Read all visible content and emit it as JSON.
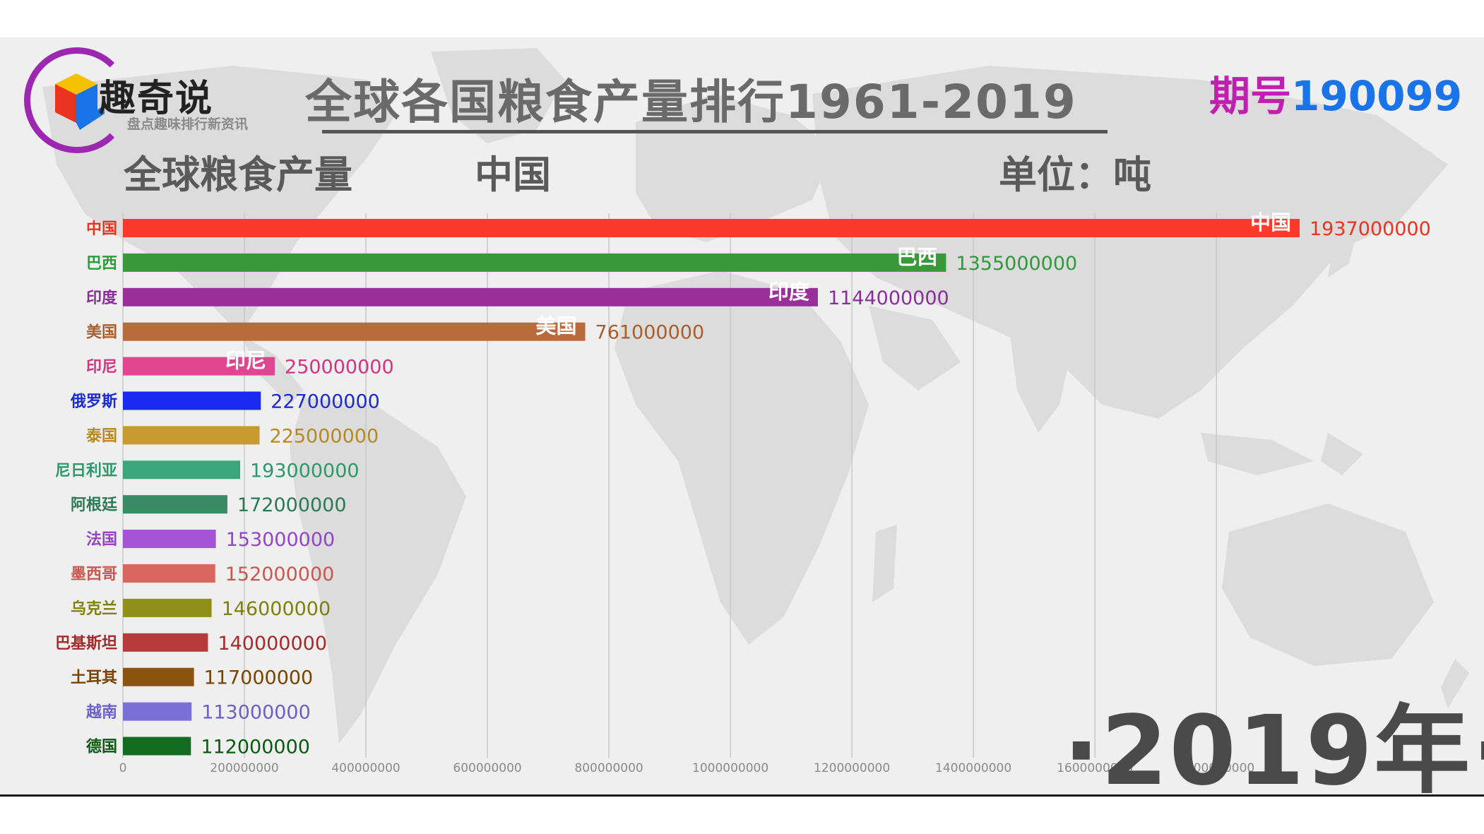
{
  "header": {
    "logo_name": "趣奇说",
    "logo_tagline": "盘点趣味排行新资讯",
    "title": "全球各国粮食产量排行1961-2019",
    "issue_label": "期号",
    "issue_number": "190099",
    "subtitle": "全球粮食产量",
    "leader": "中国",
    "unit": "单位：吨"
  },
  "year_label": "·2019年·",
  "colors": {
    "background": "#efefef",
    "map": "#dcdcdc",
    "text_dark": "#5a5a5a",
    "grid": "#c8c8c8"
  },
  "chart_data": {
    "type": "bar",
    "orientation": "horizontal",
    "title": "全球各国粮食产量排行1961-2019",
    "subtitle": "全球粮食产量",
    "unit": "单位：吨",
    "year": "2019年",
    "xlim": [
      0,
      1937000000
    ],
    "xticks": [
      0,
      200000000,
      400000000,
      600000000,
      800000000,
      1000000000,
      1200000000,
      1400000000,
      1600000000,
      1800000000
    ],
    "xtick_labels": [
      "0",
      "200000000",
      "400000000",
      "600000000",
      "800000000",
      "1000000000",
      "1200000000",
      "1400000000",
      "1600000000",
      "1800000000"
    ],
    "grid": true,
    "categories": [
      "中国",
      "巴西",
      "印度",
      "美国",
      "印尼",
      "俄罗斯",
      "泰国",
      "尼日利亚",
      "阿根廷",
      "法国",
      "墨西哥",
      "乌克兰",
      "巴基斯坦",
      "土耳其",
      "越南",
      "德国"
    ],
    "values": [
      1937000000,
      1355000000,
      1144000000,
      761000000,
      250000000,
      227000000,
      225000000,
      193000000,
      172000000,
      153000000,
      152000000,
      146000000,
      140000000,
      117000000,
      113000000,
      112000000
    ],
    "value_labels": [
      "1937000000",
      "1355000000",
      "1144000000",
      "761000000",
      "250000000",
      "227000000",
      "225000000",
      "193000000",
      "172000000",
      "153000000",
      "152000000",
      "146000000",
      "140000000",
      "117000000",
      "113000000",
      "112000000"
    ],
    "bar_colors": [
      "#fb3a2a",
      "#3a9a3a",
      "#9a2f9a",
      "#b86c3e",
      "#e0458f",
      "#1a2bf0",
      "#c79a2e",
      "#3aa77a",
      "#3a8a64",
      "#a455d6",
      "#d9675f",
      "#8f901a",
      "#b53a3a",
      "#8a5410",
      "#7a70d8",
      "#136a21"
    ],
    "label_colors": [
      "#e8341f",
      "#2f9a3a",
      "#8a2f9a",
      "#a85f2e",
      "#d0357f",
      "#1a2bd0",
      "#b58a20",
      "#2a9a6a",
      "#2a7a54",
      "#9445c6",
      "#c9574f",
      "#7f800a",
      "#a52a2a",
      "#7a4400",
      "#6a60c8",
      "#0a5a11"
    ],
    "inbar_labels": [
      "中国",
      "巴西",
      "印度",
      "美国",
      "印尼",
      "",
      "",
      "",
      "",
      "",
      "",
      "",
      "",
      "",
      "",
      ""
    ]
  }
}
